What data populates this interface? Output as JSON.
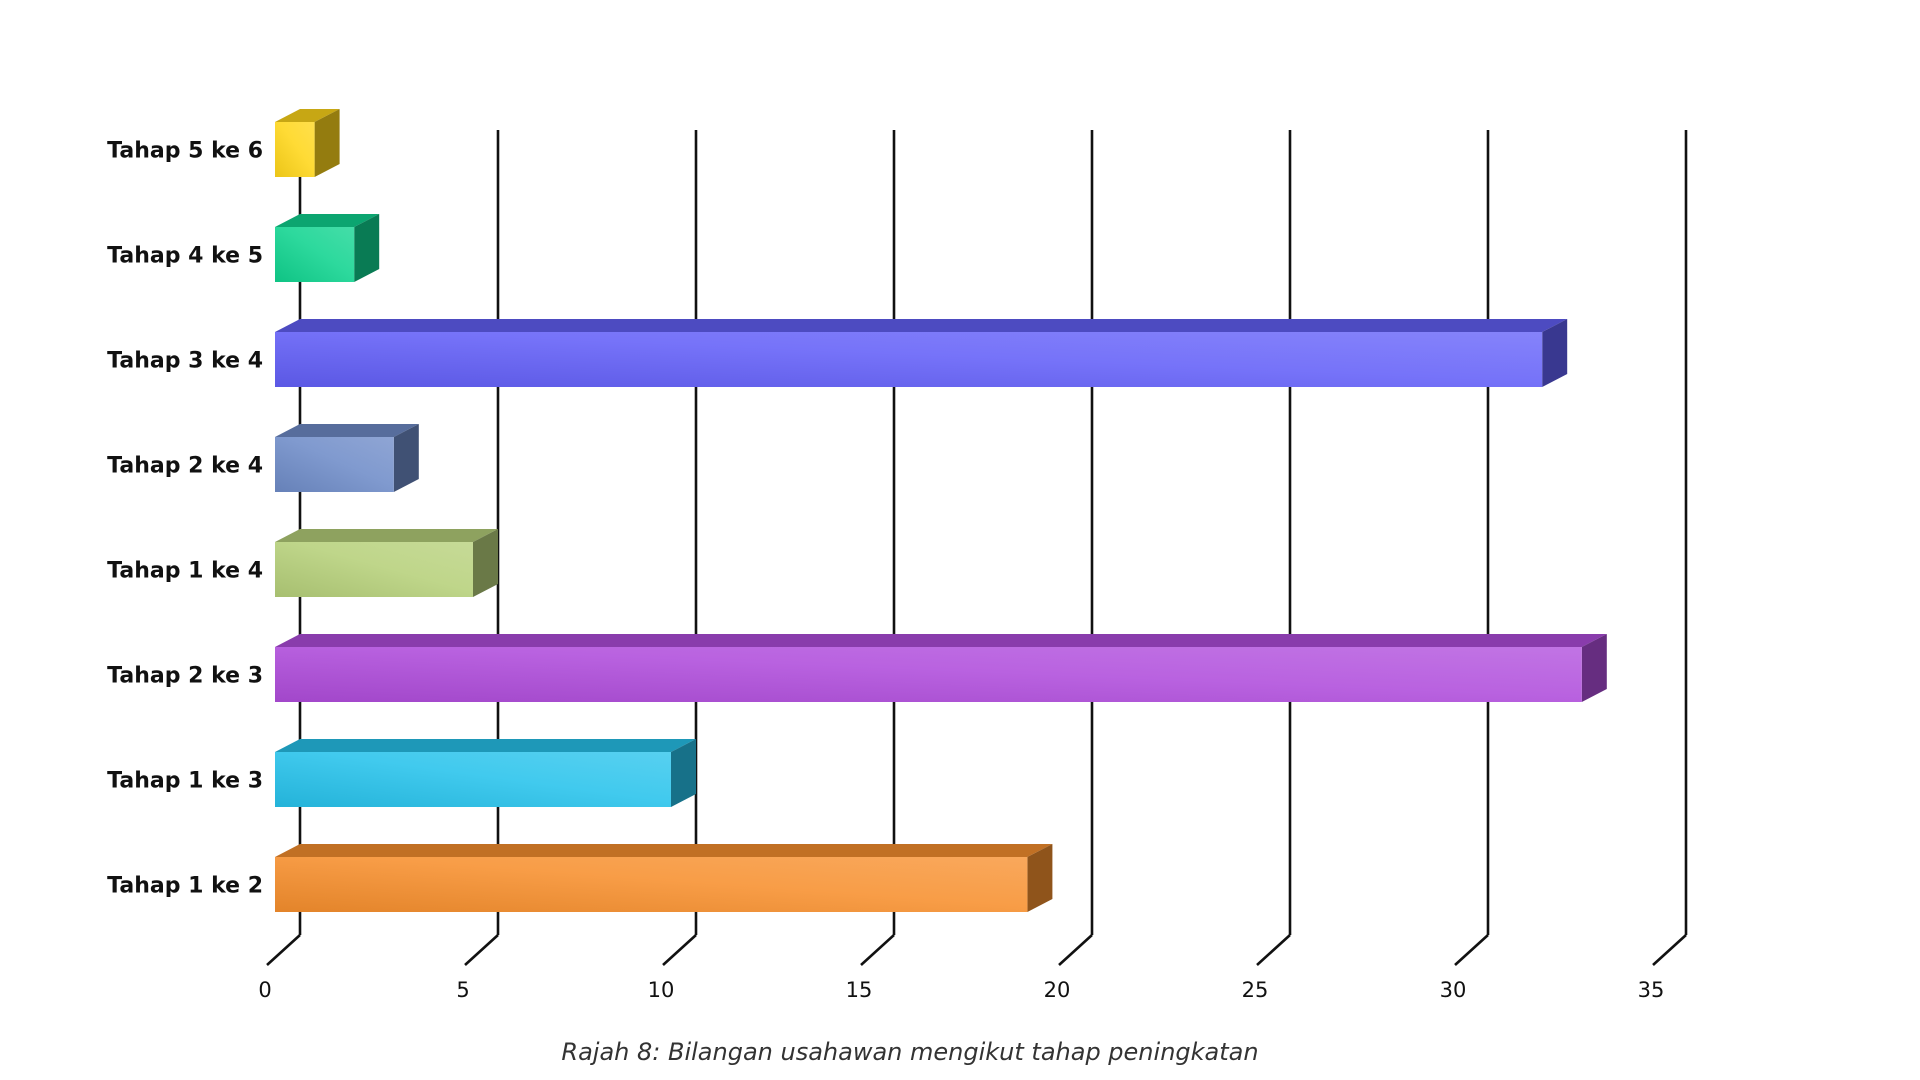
{
  "chart_data": {
    "type": "bar",
    "orientation": "horizontal",
    "style": "3d",
    "categories": [
      "Tahap 1 ke 2",
      "Tahap 1 ke 3",
      "Tahap 2 ke 3",
      "Tahap 1 ke 4",
      "Tahap 2 ke 4",
      "Tahap 3 ke 4",
      "Tahap 4 ke 5",
      "Tahap 5 ke 6"
    ],
    "values": [
      19,
      10,
      33,
      5,
      3,
      32,
      2,
      1
    ],
    "colors": [
      "#f7902e",
      "#27c3ec",
      "#b04ddc",
      "#b6d07a",
      "#6f8cc8",
      "#6360f8",
      "#10d490",
      "#ffd61a"
    ],
    "xlim": [
      0,
      35
    ],
    "xticks": [
      0,
      5,
      10,
      15,
      20,
      25,
      30,
      35
    ],
    "grid": true,
    "legend": "none"
  },
  "caption": "Rajah 8: Bilangan usahawan mengikut tahap peningkatan"
}
